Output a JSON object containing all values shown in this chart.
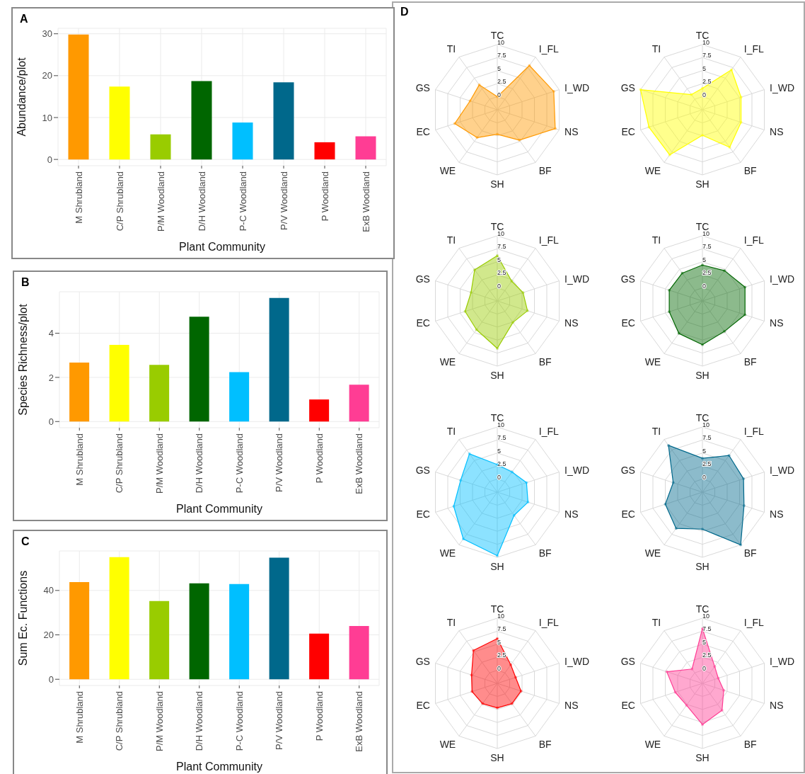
{
  "chart_data": [
    {
      "type": "bar",
      "title": "A",
      "categories": [
        "M Shrubland",
        "C/P Shrubland",
        "P/M Woodland",
        "D/H Woodland",
        "P-C Woodland",
        "P/V Woodland",
        "P Woodland",
        "ExB Woodland"
      ],
      "values": [
        29.8,
        17.4,
        6.0,
        18.7,
        8.8,
        18.4,
        4.1,
        5.5
      ],
      "colors": [
        "#ff9900",
        "#ffff00",
        "#99cc00",
        "#006600",
        "#00bfff",
        "#00688b",
        "#ff0000",
        "#ff3d94"
      ],
      "xlabel": "Plant Community",
      "ylabel": "Abundance/plot",
      "ylim": [
        -1.5,
        31.3
      ],
      "yticks": [
        0,
        10,
        20,
        30
      ],
      "grid": true
    },
    {
      "type": "bar",
      "title": "B",
      "categories": [
        "M Shrubland",
        "C/P Shrubland",
        "P/M Woodland",
        "D/H Woodland",
        "P-C Woodland",
        "P/V Woodland",
        "P Woodland",
        "ExB Woodland"
      ],
      "values": [
        2.67,
        3.47,
        2.57,
        4.75,
        2.24,
        5.6,
        1.0,
        1.67
      ],
      "colors": [
        "#ff9900",
        "#ffff00",
        "#99cc00",
        "#006600",
        "#00bfff",
        "#00688b",
        "#ff0000",
        "#ff3d94"
      ],
      "xlabel": "Plant Community",
      "ylabel": "Species Richness/plot",
      "ylim": [
        -0.28,
        5.88
      ],
      "yticks": [
        0,
        2,
        4
      ],
      "grid": true
    },
    {
      "type": "bar",
      "title": "C",
      "categories": [
        "M Shrubland",
        "C/P Shrubland",
        "P/M Woodland",
        "D/H Woodland",
        "P-C Woodland",
        "P/V Woodland",
        "P Woodland",
        "ExB Woodland"
      ],
      "values": [
        43.8,
        55.0,
        35.2,
        43.2,
        42.9,
        54.8,
        20.6,
        24.0
      ],
      "colors": [
        "#ff9900",
        "#ffff00",
        "#99cc00",
        "#006600",
        "#00bfff",
        "#00688b",
        "#ff0000",
        "#ff3d94"
      ],
      "xlabel": "Plant Community",
      "ylabel": "Sum Ec. Functions",
      "ylim": [
        -2.8,
        57.8
      ],
      "yticks": [
        0,
        20,
        40
      ],
      "grid": true
    },
    {
      "type": "radar",
      "title": "D",
      "categories": [
        "TC",
        "I_FL",
        "I_WD",
        "NS",
        "BF",
        "SH",
        "WE",
        "EC",
        "GS",
        "TI"
      ],
      "series": [
        {
          "color": "#ff9900",
          "values": [
            0,
            8.0,
            8.9,
            9.2,
            4.7,
            2.2,
            4.1,
            6.1,
            3.0,
            3.4
          ]
        }
      ],
      "ylim": [
        -2.5,
        10
      ],
      "yticks": [
        0,
        2.5,
        5,
        7.5,
        10
      ],
      "marker": "circle"
    },
    {
      "type": "radar",
      "categories": [
        "TC",
        "I_FL",
        "I_WD",
        "NS",
        "BF",
        "SH",
        "WE",
        "EC",
        "GS",
        "TI"
      ],
      "series": [
        {
          "color": "#ffff00",
          "values": [
            1.6,
            7.0,
            5.3,
            5.3,
            6.4,
            2.4,
            8.2,
            8.3,
            10,
            1.1
          ]
        }
      ],
      "ylim": [
        -2.5,
        10
      ],
      "yticks": [
        0,
        2.5,
        5,
        7.5,
        10
      ],
      "marker": "circle"
    },
    {
      "type": "radar",
      "categories": [
        "TC",
        "I_FL",
        "I_WD",
        "NS",
        "BF",
        "SH",
        "WE",
        "EC",
        "GS",
        "TI"
      ],
      "series": [
        {
          "color": "#99cc00",
          "values": [
            6.2,
            2.2,
            2.7,
            3.6,
            2.6,
            6.6,
            4.3,
            4.0,
            2.8,
            4.9
          ]
        }
      ],
      "ylim": [
        -2.5,
        10
      ],
      "yticks": [
        0,
        2.5,
        5,
        7.5,
        10
      ],
      "marker": "circle"
    },
    {
      "type": "radar",
      "categories": [
        "TC",
        "I_FL",
        "I_WD",
        "NS",
        "BF",
        "SH",
        "WE",
        "EC",
        "GS",
        "TI"
      ],
      "series": [
        {
          "color": "#006600",
          "values": [
            4.4,
            4.7,
            6.1,
            6.1,
            4.7,
            5.9,
            5.2,
            4.2,
            4.2,
            4.1
          ]
        }
      ],
      "ylim": [
        -2.5,
        10
      ],
      "yticks": [
        0,
        2.5,
        5,
        7.5,
        10
      ],
      "marker": "circle"
    },
    {
      "type": "radar",
      "categories": [
        "TC",
        "I_FL",
        "I_WD",
        "NS",
        "BF",
        "SH",
        "WE",
        "EC",
        "GS",
        "TI"
      ],
      "series": [
        {
          "color": "#00bfff",
          "values": [
            2.8,
            2.3,
            3.4,
            3.7,
            3.0,
            9.7,
            8.6,
            6.3,
            4.9,
            6.6
          ]
        }
      ],
      "ylim": [
        -2.5,
        10
      ],
      "yticks": [
        0,
        2.5,
        5,
        7.5,
        10
      ],
      "marker": "circle"
    },
    {
      "type": "radar",
      "categories": [
        "TC",
        "I_FL",
        "I_WD",
        "NS",
        "BF",
        "SH",
        "WE",
        "EC",
        "GS",
        "TI"
      ],
      "series": [
        {
          "color": "#00688b",
          "values": [
            4.0,
            6.2,
            5.8,
            5.9,
            10,
            4.6,
            6.1,
            5.0,
            3.4,
            8.6
          ]
        }
      ],
      "ylim": [
        -2.5,
        10
      ],
      "yticks": [
        0,
        2.5,
        5,
        7.5,
        10
      ],
      "marker": "circle"
    },
    {
      "type": "radar",
      "categories": [
        "TC",
        "I_FL",
        "I_WD",
        "NS",
        "BF",
        "SH",
        "WE",
        "EC",
        "GS",
        "TI"
      ],
      "series": [
        {
          "color": "#ff0000",
          "values": [
            6.1,
            1.9,
            1.2,
            2.3,
            2.3,
            2.2,
            2.3,
            2.6,
            2.7,
            5.3
          ]
        }
      ],
      "ylim": [
        -2.5,
        10
      ],
      "yticks": [
        0,
        2.5,
        5,
        7.5,
        10
      ],
      "marker": "circle"
    },
    {
      "type": "radar",
      "categories": [
        "TC",
        "I_FL",
        "I_WD",
        "NS",
        "BF",
        "SH",
        "WE",
        "EC",
        "GS",
        "TI"
      ],
      "series": [
        {
          "color": "#ff3d94",
          "values": [
            8.0,
            1.5,
            0.7,
            1.8,
            3.9,
            5.4,
            2.7,
            3.0,
            4.7,
            0.9
          ]
        }
      ],
      "ylim": [
        -2.5,
        10
      ],
      "yticks": [
        0,
        2.5,
        5,
        7.5,
        10
      ],
      "marker": "circle"
    }
  ]
}
